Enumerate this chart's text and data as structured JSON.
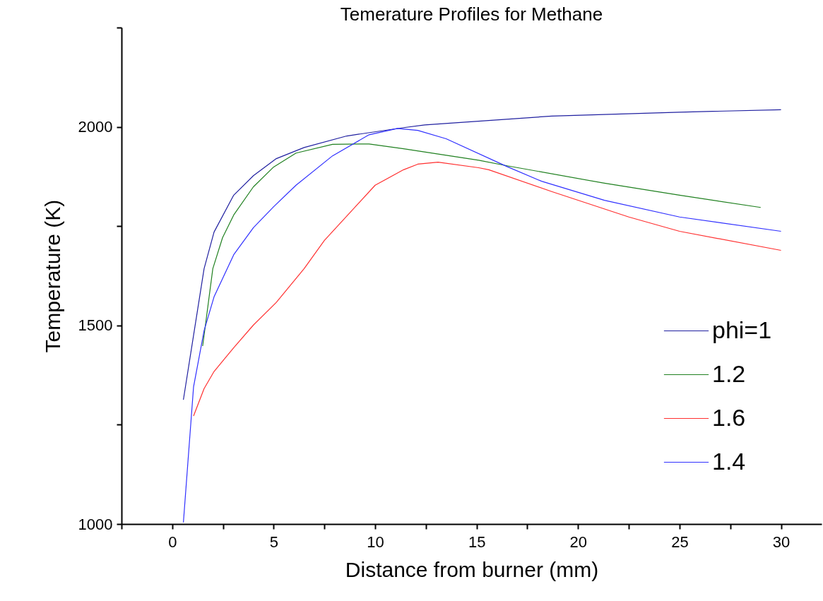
{
  "chart_data": {
    "type": "line",
    "title": "Temerature Profiles for Methane",
    "xlabel": "Distance from burner (mm)",
    "ylabel": "Temperature (K)",
    "xlim": [
      -2.5,
      32
    ],
    "ylim": [
      1000,
      2250
    ],
    "xticks": [
      {
        "value": -2.5,
        "label": null
      },
      0,
      {
        "value": 2.5,
        "label": null
      },
      5,
      {
        "value": 7.5,
        "label": null
      },
      10,
      {
        "value": 12.5,
        "label": null
      },
      15,
      {
        "value": 17.5,
        "label": null
      },
      20,
      {
        "value": 22.5,
        "label": null
      },
      25,
      {
        "value": 27.5,
        "label": null
      },
      30
    ],
    "yticks": [
      1000,
      {
        "value": 1250,
        "label": null
      },
      1500,
      {
        "value": 1750,
        "label": null
      },
      2000,
      {
        "value": 2250,
        "label": null
      }
    ],
    "grid": false,
    "legend": "bottom right",
    "line_style": "solid",
    "marker": "none",
    "series": [
      {
        "name": "phi=1",
        "color": "#2020a0",
        "x": [
          0.55,
          1.57,
          2.06,
          3.03,
          4.0,
          5.13,
          6.5,
          8.6,
          11.4,
          12.45,
          18.7,
          25,
          30
        ],
        "values": [
          1313,
          1643,
          1735,
          1828,
          1877,
          1920,
          1948,
          1977,
          1998,
          2005,
          2027,
          2037,
          2043
        ]
      },
      {
        "name": "1.2",
        "color": "#208020",
        "x": [
          1.5,
          2.0,
          2.48,
          3.03,
          4.0,
          5.0,
          6.1,
          7.9,
          9.7,
          11.4,
          15.1,
          16.5,
          21.3,
          25,
          29
        ],
        "values": [
          1448,
          1643,
          1721,
          1778,
          1849,
          1899,
          1934,
          1956,
          1957,
          1945,
          1916,
          1902,
          1858,
          1828,
          1797
        ]
      },
      {
        "name": "1.6",
        "color": "#ff3030",
        "x": [
          1.05,
          1.57,
          2.06,
          3.03,
          4.0,
          5.13,
          6.5,
          7.5,
          8.9,
          10.0,
          11.4,
          12.1,
          13.1,
          15.1,
          15.6,
          18.7,
          22.5,
          25,
          30
        ],
        "values": [
          1272,
          1341,
          1384,
          1444,
          1501,
          1558,
          1643,
          1714,
          1792,
          1853,
          1892,
          1906,
          1911,
          1897,
          1892,
          1837,
          1773,
          1737,
          1689
        ]
      },
      {
        "name": "1.4",
        "color": "#3030ff",
        "x": [
          0.55,
          1.05,
          1.57,
          2.06,
          3.03,
          4.0,
          5.0,
          6.1,
          7.9,
          9.7,
          11.1,
          12.1,
          13.5,
          16.5,
          18.2,
          21.3,
          25,
          30
        ],
        "values": [
          1004,
          1345,
          1487,
          1572,
          1678,
          1746,
          1799,
          1853,
          1927,
          1980,
          1996,
          1991,
          1970,
          1900,
          1863,
          1815,
          1773,
          1737
        ]
      }
    ]
  }
}
